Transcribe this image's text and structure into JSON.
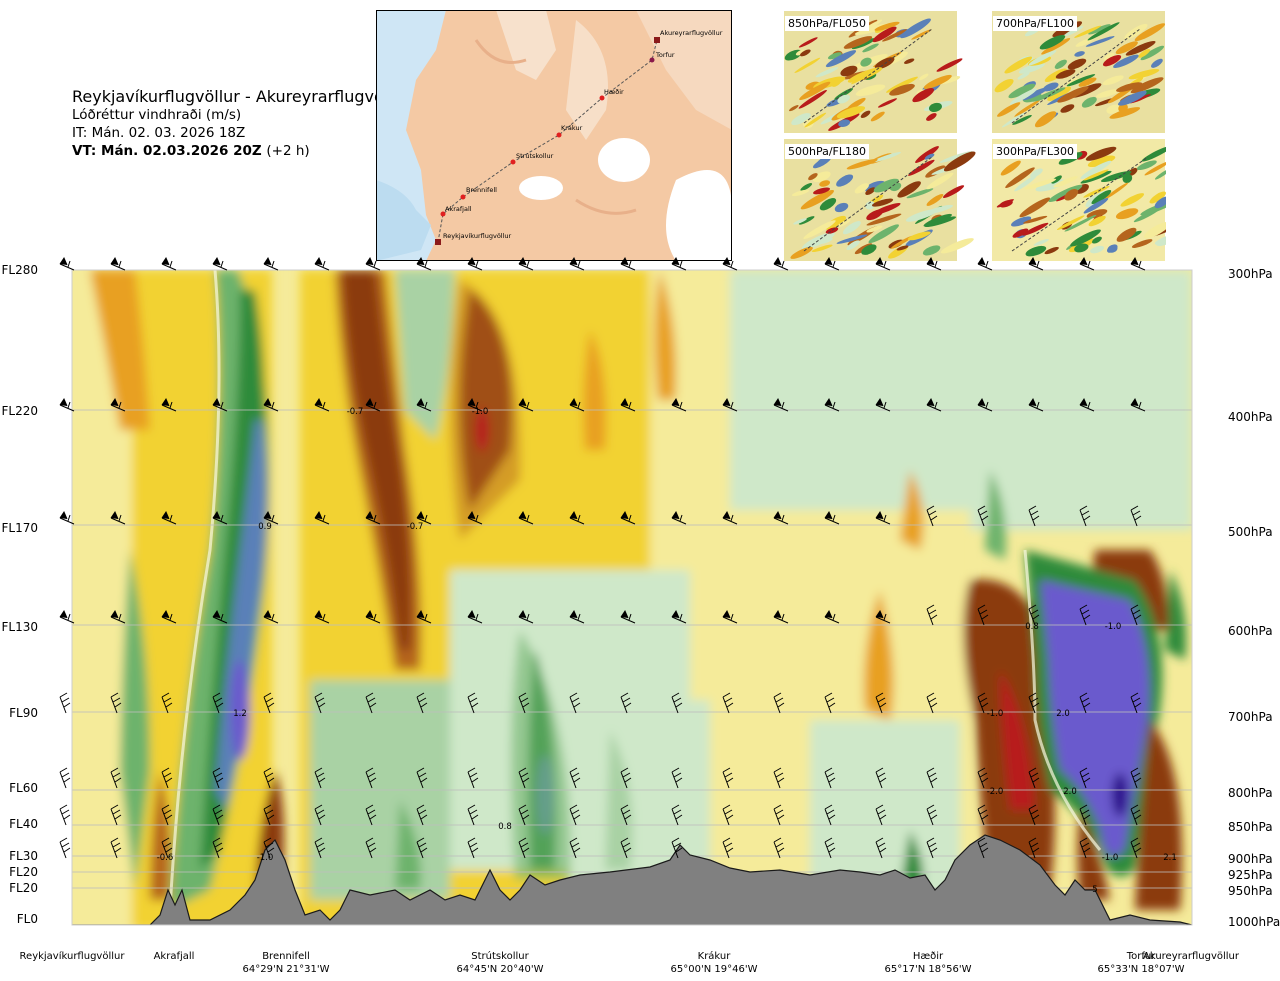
{
  "header": {
    "route": "Reykjavíkurflugvöllur - Akureyrarflugvöllur",
    "parameter": "Lóðréttur vindhraði (m/s)",
    "issue_time": "IT: Mán. 02. 03. 2026 18Z",
    "valid_time": "VT: Mán. 02.03.2026 20Z",
    "valid_offset": "(+2 h)"
  },
  "map": {
    "waypoints": [
      "Akureyrarflugvöllur",
      "Torfur",
      "Hæðir",
      "Krákur",
      "Strútskollur",
      "Brennifell",
      "Akrafjall",
      "Reykjavíkurflugvöllur"
    ]
  },
  "panels": [
    {
      "label": "850hPa/FL050"
    },
    {
      "label": "700hPa/FL100"
    },
    {
      "label": "500hPa/FL180"
    },
    {
      "label": "300hPa/FL300"
    }
  ],
  "left_axis": [
    "FL280",
    "FL220",
    "FL170",
    "FL130",
    "FL90",
    "FL60",
    "FL40",
    "FL30",
    "FL20",
    "FL20",
    "FL0"
  ],
  "right_axis": [
    "300hPa",
    "400hPa",
    "500hPa",
    "600hPa",
    "700hPa",
    "800hPa",
    "850hPa",
    "900hPa",
    "925hPa",
    "950hPa",
    "1000hPa"
  ],
  "locations": [
    {
      "name": "Reykjavíkurflugvöllur",
      "coord": ""
    },
    {
      "name": "Akrafjall",
      "coord": ""
    },
    {
      "name": "Brennifell",
      "coord": "64°29'N 21°31'W"
    },
    {
      "name": "Strútskollur",
      "coord": "64°45'N 20°40'W"
    },
    {
      "name": "Krákur",
      "coord": "65°00'N 19°46'W"
    },
    {
      "name": "Hæðir",
      "coord": "65°17'N 18°56'W"
    },
    {
      "name": "Torfur",
      "coord": "65°33'N 18°07'W"
    },
    {
      "name": "Akureyrarflugvöllur",
      "coord": ""
    }
  ],
  "colors": {
    "dark_brown": "#8b3a0f",
    "brown": "#b5651d",
    "orange": "#e8a020",
    "yellow": "#f2d232",
    "light_yellow": "#f5eb9a",
    "pale_green": "#cfe8c9",
    "light_green": "#a9d2a4",
    "green": "#6db36c",
    "dark_green": "#2e8b3a",
    "deep_green": "#0f7a2a",
    "steel_blue": "#5a80b8",
    "violet": "#6a5acd",
    "red": "#b81b1b",
    "terrain": "#808080"
  },
  "chart_data": {
    "type": "heatmap",
    "title": "Lóðréttur vindhraði (m/s)",
    "xlabel": "",
    "ylabel": "",
    "y_levels_hpa": [
      300,
      400,
      500,
      600,
      700,
      800,
      850,
      900,
      925,
      950,
      1000
    ],
    "annotations": [
      {
        "text": "-0.7",
        "location": "Brennifell-Strútskollur",
        "level_hpa": 400
      },
      {
        "text": "-1.0",
        "location": "Strútskollur",
        "level_hpa": 400
      },
      {
        "text": "0.9",
        "location": "Brennifell",
        "level_hpa": 500
      },
      {
        "text": "-0.7",
        "location": "Brennifell-Strútskollur",
        "level_hpa": 500
      },
      {
        "text": "0.8",
        "location": "Torfur",
        "level_hpa": 600
      },
      {
        "text": "-1.0",
        "location": "Torfur",
        "level_hpa": 600
      },
      {
        "text": "1.2",
        "location": "Brennifell",
        "level_hpa": 700
      },
      {
        "text": "-1.0",
        "location": "Hæðir-Torfur",
        "level_hpa": 700
      },
      {
        "text": "2.0",
        "location": "Torfur",
        "level_hpa": 700
      },
      {
        "text": "-2.0",
        "location": "Hæðir-Torfur",
        "level_hpa": 800
      },
      {
        "text": "2.0",
        "location": "Torfur",
        "level_hpa": 800
      },
      {
        "text": "0.8",
        "location": "Strútskollur",
        "level_hpa": 850
      },
      {
        "text": "-0.6",
        "location": "Akrafjall",
        "level_hpa": 900
      },
      {
        "text": "-1.0",
        "location": "Brennifell",
        "level_hpa": 900
      },
      {
        "text": "-1.0",
        "location": "Torfur",
        "level_hpa": 900
      },
      {
        "text": "2.1",
        "location": "Akureyrarflugvöllur",
        "level_hpa": 900
      },
      {
        "text": "5",
        "location": "Torfur",
        "level_hpa": 950
      }
    ]
  }
}
